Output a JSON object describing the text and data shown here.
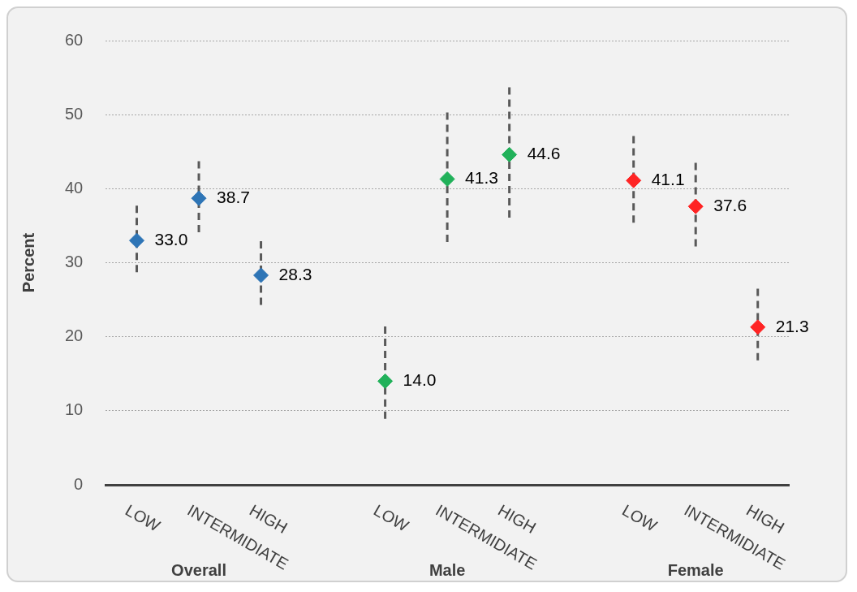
{
  "chart_data": {
    "type": "scatter",
    "ylabel": "Percent",
    "annotations": [
      "Overall",
      "Male",
      "Female"
    ],
    "categories": [
      "LOW",
      "INTERMIDIATE",
      "HIGH",
      null,
      "LOW",
      "INTERMIDIATE",
      "HIGH",
      null,
      "LOW",
      "INTERMIDIATE",
      "HIGH"
    ],
    "series": [
      {
        "color": "#2e75b6",
        "values": [
          33.0,
          38.7,
          28.3,
          null,
          null,
          null,
          null,
          null,
          null,
          null,
          null
        ],
        "value_labels": [
          "33.0",
          "38.7",
          "28.3",
          null,
          null,
          null,
          null,
          null,
          null,
          null,
          null
        ],
        "errors": [
          [
            28.7,
            37.7
          ],
          [
            34.1,
            43.7
          ],
          [
            24.3,
            32.9
          ],
          null,
          null,
          null,
          null,
          null,
          null,
          null,
          null
        ]
      },
      {
        "color": "#21b15a",
        "values": [
          null,
          null,
          null,
          null,
          14.0,
          41.3,
          44.6,
          null,
          null,
          null,
          null
        ],
        "value_labels": [
          null,
          null,
          null,
          null,
          "14.0",
          "41.3",
          "44.6",
          null,
          null,
          null,
          null
        ],
        "errors": [
          null,
          null,
          null,
          null,
          [
            8.9,
            21.4
          ],
          [
            32.8,
            50.3
          ],
          [
            36.1,
            53.7
          ],
          null,
          null,
          null,
          null
        ]
      },
      {
        "color": "#ff2424",
        "values": [
          null,
          null,
          null,
          null,
          null,
          null,
          null,
          null,
          41.1,
          37.6,
          21.3
        ],
        "value_labels": [
          null,
          null,
          null,
          null,
          null,
          null,
          null,
          null,
          "41.1",
          "37.6",
          "21.3"
        ],
        "errors": [
          null,
          null,
          null,
          null,
          null,
          null,
          null,
          null,
          [
            35.4,
            47.1
          ],
          [
            32.2,
            43.5
          ],
          [
            16.8,
            26.5
          ]
        ]
      }
    ],
    "ylim": [
      0,
      60
    ],
    "yticks": [
      0,
      10,
      20,
      30,
      40,
      50,
      60
    ],
    "grid": "y",
    "legend": false,
    "marker": "diamond"
  }
}
